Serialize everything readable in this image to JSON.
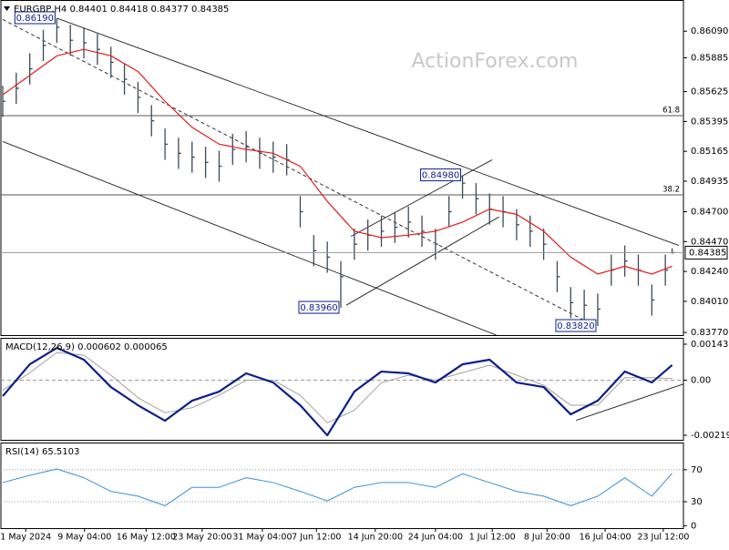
{
  "chart_data": [
    {
      "type": "ohlc",
      "title": "EURGBP,H4  0.84401 0.84418 0.84377 0.84385",
      "watermark": "ActionForex.com",
      "color": "#3b4a57",
      "xlim": [
        0,
        100
      ],
      "ylim": [
        0.8375,
        0.8633
      ],
      "yticks": [
        {
          "value": 0.8609,
          "label": "0.86090"
        },
        {
          "value": 0.85885,
          "label": "0.85885"
        },
        {
          "value": 0.85625,
          "label": "0.85625"
        },
        {
          "value": 0.85395,
          "label": "0.85395"
        },
        {
          "value": 0.85165,
          "label": "0.85165"
        },
        {
          "value": 0.84935,
          "label": "0.84935"
        },
        {
          "value": 0.847,
          "label": "0.84700"
        },
        {
          "value": 0.8447,
          "label": "0.84470"
        },
        {
          "value": 0.8424,
          "label": "0.84240"
        },
        {
          "value": 0.8401,
          "label": "0.84010"
        },
        {
          "value": 0.8377,
          "label": "0.83770"
        }
      ],
      "x": [
        0,
        2,
        4,
        6,
        8,
        10,
        12,
        14,
        16,
        18,
        20,
        22,
        24,
        26,
        28,
        30,
        32,
        34,
        36,
        38,
        40,
        42,
        44,
        46,
        48,
        50,
        52,
        54,
        56,
        58,
        60,
        62,
        64,
        66,
        68,
        70,
        72,
        74,
        76,
        78,
        80,
        82,
        84,
        86,
        88,
        90,
        92,
        94,
        96,
        98,
        99
      ],
      "high": [
        0.8567,
        0.8577,
        0.8592,
        0.861,
        0.8619,
        0.8614,
        0.8612,
        0.8607,
        0.8597,
        0.8584,
        0.857,
        0.8552,
        0.8534,
        0.8527,
        0.8524,
        0.852,
        0.8517,
        0.853,
        0.8532,
        0.8527,
        0.8524,
        0.8522,
        0.8482,
        0.8452,
        0.8447,
        0.8432,
        0.8457,
        0.8464,
        0.8467,
        0.847,
        0.8474,
        0.8467,
        0.8457,
        0.8482,
        0.8498,
        0.8492,
        0.8484,
        0.8482,
        0.8472,
        0.8467,
        0.8457,
        0.8432,
        0.8412,
        0.841,
        0.8407,
        0.8437,
        0.8444,
        0.8437,
        0.8414,
        0.8437,
        0.84418
      ],
      "low": [
        0.8543,
        0.8553,
        0.8568,
        0.8586,
        0.86,
        0.859,
        0.8588,
        0.8583,
        0.8573,
        0.856,
        0.8546,
        0.8528,
        0.851,
        0.8503,
        0.85,
        0.8496,
        0.8493,
        0.8506,
        0.8508,
        0.8503,
        0.85,
        0.8498,
        0.8458,
        0.8428,
        0.8423,
        0.8396,
        0.8433,
        0.844,
        0.8443,
        0.8446,
        0.845,
        0.8443,
        0.8433,
        0.8458,
        0.848,
        0.8468,
        0.846,
        0.8458,
        0.8448,
        0.8443,
        0.8433,
        0.8408,
        0.8388,
        0.8386,
        0.8382,
        0.8413,
        0.842,
        0.8413,
        0.839,
        0.8413,
        0.84377
      ],
      "close": [
        0.8555,
        0.8565,
        0.858,
        0.8598,
        0.8612,
        0.8602,
        0.86,
        0.8595,
        0.8585,
        0.8572,
        0.8558,
        0.854,
        0.8522,
        0.8515,
        0.8512,
        0.8508,
        0.8505,
        0.8518,
        0.852,
        0.8515,
        0.8512,
        0.851,
        0.847,
        0.844,
        0.8435,
        0.842,
        0.8445,
        0.8452,
        0.8455,
        0.8458,
        0.8462,
        0.8455,
        0.8445,
        0.847,
        0.8492,
        0.848,
        0.8472,
        0.847,
        0.846,
        0.8455,
        0.8445,
        0.842,
        0.84,
        0.8398,
        0.8395,
        0.8425,
        0.8432,
        0.8425,
        0.8402,
        0.8425,
        0.84385
      ],
      "ma": {
        "color": "#e41a1c",
        "x": [
          0,
          4,
          8,
          12,
          16,
          20,
          24,
          28,
          32,
          36,
          40,
          44,
          48,
          52,
          56,
          60,
          64,
          68,
          72,
          76,
          80,
          84,
          88,
          92,
          96,
          99
        ],
        "values": [
          0.856,
          0.8575,
          0.859,
          0.8595,
          0.859,
          0.8578,
          0.8555,
          0.8535,
          0.8522,
          0.8518,
          0.8515,
          0.8505,
          0.8478,
          0.8455,
          0.845,
          0.8452,
          0.8455,
          0.8462,
          0.8472,
          0.8468,
          0.8455,
          0.8435,
          0.8422,
          0.8428,
          0.8422,
          0.8428
        ]
      },
      "trendlines": [
        {
          "x": [
            8,
            100
          ],
          "y": [
            0.8619,
            0.8444
          ],
          "dash": false
        },
        {
          "x": [
            0,
            73
          ],
          "y": [
            0.8524,
            0.8375
          ],
          "dash": false
        },
        {
          "x": [
            0,
            86.5
          ],
          "y": [
            0.8618,
            0.8385
          ],
          "dash": true
        },
        {
          "x": [
            50.8,
            73.4
          ],
          "y": [
            0.8398,
            0.8466
          ],
          "dash": false
        },
        {
          "x": [
            51.5,
            72.4
          ],
          "y": [
            0.8451,
            0.851
          ],
          "dash": false
        }
      ],
      "levels": [
        {
          "value": 0.8544,
          "label": "61.8"
        },
        {
          "value": 0.8483,
          "label": "38.2"
        }
      ],
      "last": 0.84385,
      "annotations": [
        {
          "x": 8,
          "y": 0.8619,
          "label": "0.86190"
        },
        {
          "x": 50,
          "y": 0.8396,
          "label": "0.83960"
        },
        {
          "x": 68,
          "y": 0.8498,
          "label": "0.84980"
        },
        {
          "x": 88,
          "y": 0.8382,
          "label": "0.83820"
        }
      ]
    },
    {
      "type": "line",
      "title": "MACD(12,26,9) 0.000602 0.000065",
      "xlim": [
        0,
        100
      ],
      "ylim": [
        -0.002379,
        0.001691
      ],
      "yticks": [
        0.001437,
        {
          "value": 0,
          "label": "0.00"
        },
        -0.002197
      ],
      "levels": [
        0
      ],
      "level_style": "dashed",
      "x": [
        0,
        4,
        8,
        12,
        16,
        20,
        24,
        28,
        32,
        36,
        40,
        44,
        48,
        52,
        56,
        60,
        64,
        68,
        72,
        76,
        80,
        84,
        88,
        92,
        96,
        99
      ],
      "series": [
        {
          "color": "#a0a0a0",
          "width": 1,
          "values": [
            -0.0004,
            0.0003,
            0.0011,
            0.001,
            0.0002,
            -0.0007,
            -0.0013,
            -0.0011,
            -0.0006,
            0.0,
            0.0,
            -0.0006,
            -0.0017,
            -0.0012,
            -0.0001,
            0.0002,
            0.0,
            0.0003,
            0.0006,
            0.0002,
            -0.0002,
            -0.001,
            -0.001,
            0.0001,
            0.0001,
            6.5e-05
          ]
        },
        {
          "color": "#0b1f8a",
          "width": 2.2,
          "values": [
            -0.000636,
            0.000636,
            0.00129,
            0.000818,
            -0.000273,
            -0.000999,
            -0.001617,
            -0.000818,
            -0.000454,
            0.000273,
            -9.1e-05,
            -0.000999,
            -0.0022,
            -0.000454,
            0.000345,
            0.000273,
            -9.1e-05,
            0.000636,
            0.000818,
            -9.1e-05,
            -0.000273,
            -0.001363,
            -0.000818,
            0.000345,
            -9.1e-05,
            0.000602
          ]
        }
      ],
      "trendlines": [
        {
          "x": [
            84.8,
            100.7
          ],
          "y": [
            -0.0016,
            -0.00015
          ],
          "dash": false
        }
      ]
    },
    {
      "type": "line",
      "title": "RSI(14) 65.5103",
      "xlim": [
        0,
        100
      ],
      "ylim": [
        -3,
        104
      ],
      "yticks": [
        70,
        30,
        0
      ],
      "levels": [
        70,
        30
      ],
      "level_style": "dotted",
      "x": [
        0,
        4,
        8,
        12,
        16,
        20,
        24,
        28,
        32,
        36,
        40,
        44,
        48,
        52,
        56,
        60,
        64,
        68,
        72,
        76,
        80,
        84,
        88,
        92,
        96,
        99
      ],
      "series": [
        {
          "color": "#3a8fd6",
          "width": 1,
          "values": [
            54,
            63,
            71,
            60,
            43,
            37,
            25,
            48,
            48,
            60,
            54,
            43,
            31,
            48,
            54,
            54,
            48,
            65,
            54,
            43,
            37,
            25,
            37,
            60,
            37,
            65.5103
          ]
        }
      ],
      "xticks": [
        {
          "value": 3.4,
          "label": "1 May 2024"
        },
        {
          "value": 12.1,
          "label": "9 May 04:00"
        },
        {
          "value": 21.2,
          "label": "16 May 12:00"
        },
        {
          "value": 29.5,
          "label": "23 May 20:00"
        },
        {
          "value": 38.4,
          "label": "31 May 04:00"
        },
        {
          "value": 46.4,
          "label": "7 Jun 12:00"
        },
        {
          "value": 55.1,
          "label": "14 Jun 20:00"
        },
        {
          "value": 64.0,
          "label": "24 Jun 04:00"
        },
        {
          "value": 72.4,
          "label": "1 Jul 12:00"
        },
        {
          "value": 80.5,
          "label": "8 Jul 20:00"
        },
        {
          "value": 89.1,
          "label": "16 Jul 04:00"
        },
        {
          "value": 97.7,
          "label": "23 Jul 12:00"
        }
      ]
    }
  ]
}
